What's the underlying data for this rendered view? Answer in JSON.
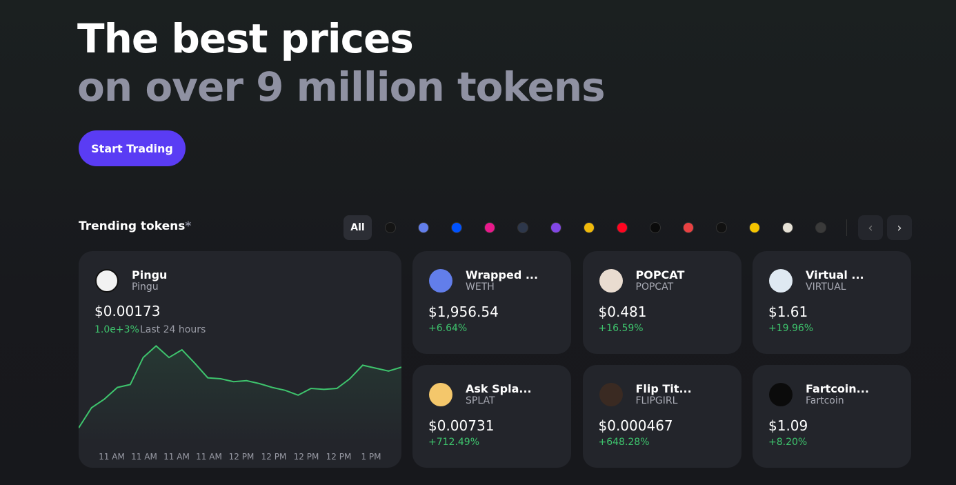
{
  "hero": {
    "line1": "The best prices",
    "line2": "on over 9 million tokens",
    "button": "Start Trading"
  },
  "trending": {
    "title": "Trending tokens",
    "marker": "*",
    "filter_all": "All"
  },
  "featured": {
    "name": "Pingu",
    "symbol": "Pingu",
    "price": "$0.00173",
    "change": "1.0e+3%",
    "period": "Last 24 hours",
    "chart": {
      "type": "line",
      "color": "#3ec46d",
      "ylim": [
        0,
        100
      ],
      "x_labels": [
        "11 AM",
        "11 AM",
        "11 AM",
        "11 AM",
        "12 PM",
        "12 PM",
        "12 PM",
        "12 PM",
        "1 PM"
      ],
      "values": [
        14,
        35,
        44,
        56,
        59,
        87,
        99,
        87,
        95,
        81,
        66,
        65,
        62,
        63,
        60,
        56,
        53,
        48,
        55,
        54,
        55,
        65,
        79,
        76,
        73,
        77
      ]
    }
  },
  "tokens": [
    {
      "name": "Wrapped ...",
      "symbol": "WETH",
      "price": "$1,956.54",
      "change": "+6.64%"
    },
    {
      "name": "POPCAT",
      "symbol": "POPCAT",
      "price": "$0.481",
      "change": "+16.59%"
    },
    {
      "name": "Virtual ...",
      "symbol": "VIRTUAL",
      "price": "$1.61",
      "change": "+19.96%"
    },
    {
      "name": "Ask Spla...",
      "symbol": "SPLAT",
      "price": "$0.00731",
      "change": "+712.49%"
    },
    {
      "name": "Flip Tit...",
      "symbol": "FLIPGIRL",
      "price": "$0.000467",
      "change": "+648.28%"
    },
    {
      "name": "Fartcoin...",
      "symbol": "Fartcoin",
      "price": "$1.09",
      "change": "+8.20%"
    }
  ]
}
